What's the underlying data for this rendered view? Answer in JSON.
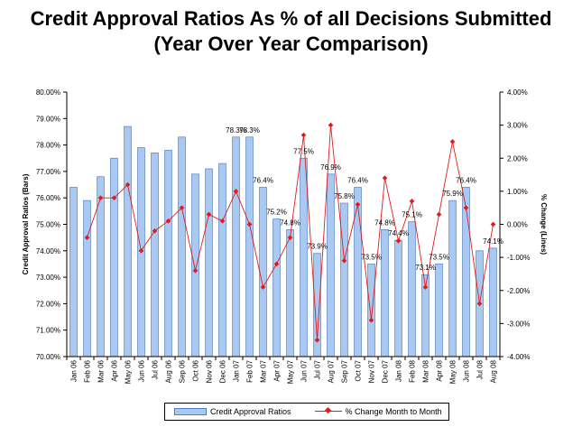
{
  "title_line1": "Credit Approval Ratios As % of all Decisions Submitted",
  "title_line2": "(Year Over Year Comparison)",
  "chart_data": {
    "type": "bar",
    "categories": [
      "Jan 06",
      "Feb 06",
      "Mar 06",
      "Apr 06",
      "May 06",
      "Jun 06",
      "Jul 06",
      "Aug 06",
      "Sep 06",
      "Oct 06",
      "Nov 06",
      "Dec 06",
      "Jan 07",
      "Feb 07",
      "Mar 07",
      "Apr 07",
      "May 07",
      "Jun 07",
      "Jul 07",
      "Aug 07",
      "Sep 07",
      "Oct 07",
      "Nov 07",
      "Dec 07",
      "Jan 08",
      "Feb 08",
      "Mar 08",
      "Apr 08",
      "May 08",
      "Jun 08",
      "Jul 08",
      "Aug 08"
    ],
    "series": [
      {
        "name": "Credit Approval Ratios",
        "type": "bar",
        "axis": "left",
        "color": "#a9c9f0",
        "values": [
          76.4,
          75.9,
          76.8,
          77.5,
          78.7,
          77.9,
          77.7,
          77.8,
          78.3,
          76.9,
          77.1,
          77.3,
          78.3,
          78.3,
          76.4,
          75.2,
          74.8,
          77.5,
          73.9,
          76.9,
          75.8,
          76.4,
          73.5,
          74.8,
          74.4,
          75.1,
          73.1,
          73.5,
          75.9,
          76.4,
          74.0,
          74.1
        ]
      },
      {
        "name": "% Change Month to Month",
        "type": "line",
        "axis": "right",
        "color": "#e31a1c",
        "values": [
          null,
          -0.4,
          0.8,
          0.8,
          1.2,
          -0.8,
          -0.2,
          0.1,
          0.5,
          -1.4,
          0.3,
          0.1,
          1.0,
          0.0,
          -1.9,
          -1.2,
          -0.4,
          2.7,
          -3.5,
          3.0,
          -1.1,
          0.6,
          -2.9,
          1.4,
          -0.5,
          0.7,
          -1.9,
          0.3,
          2.5,
          0.5,
          -2.4,
          0.0
        ]
      }
    ],
    "data_labels": [
      {
        "index": 12,
        "text": "78.3%"
      },
      {
        "index": 13,
        "text": "78.3%"
      },
      {
        "index": 14,
        "text": "76.4%"
      },
      {
        "index": 15,
        "text": "75.2%"
      },
      {
        "index": 16,
        "text": "74.8%"
      },
      {
        "index": 17,
        "text": "77.5%"
      },
      {
        "index": 18,
        "text": "73.9%"
      },
      {
        "index": 19,
        "text": "76.9%"
      },
      {
        "index": 20,
        "text": "75.8%"
      },
      {
        "index": 21,
        "text": "76.4%"
      },
      {
        "index": 22,
        "text": "73.5%"
      },
      {
        "index": 23,
        "text": "74.8%"
      },
      {
        "index": 24,
        "text": "74.4%"
      },
      {
        "index": 25,
        "text": "75.1%"
      },
      {
        "index": 26,
        "text": "73.1%"
      },
      {
        "index": 27,
        "text": "73.5%"
      },
      {
        "index": 28,
        "text": "75.9%"
      },
      {
        "index": 29,
        "text": "76.4%"
      },
      {
        "index": 31,
        "text": "74.1%"
      }
    ],
    "ylabel": "Credit Approval Ratios (Bars)",
    "y2label": "% Change (Lines)",
    "ylim": [
      70,
      80
    ],
    "y2lim": [
      -4,
      4
    ],
    "yticks": [
      "70.00%",
      "71.00%",
      "72.00%",
      "73.00%",
      "74.00%",
      "75.00%",
      "76.00%",
      "77.00%",
      "78.00%",
      "79.00%",
      "80.00%"
    ],
    "y2ticks": [
      "-4.00%",
      "-3.00%",
      "-2.00%",
      "-1.00%",
      "0.00%",
      "1.00%",
      "2.00%",
      "3.00%",
      "4.00%"
    ],
    "grid": false,
    "legend_position": "bottom"
  },
  "legend": {
    "bar_label": "Credit Approval Ratios",
    "line_label": "% Change Month to Month"
  }
}
